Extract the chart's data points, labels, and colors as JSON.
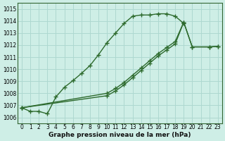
{
  "background_color": "#ceeee6",
  "grid_color": "#aed8d0",
  "line_color": "#2d6a2d",
  "xlabel": "Graphe pression niveau de la mer (hPa)",
  "ylim": [
    1005.5,
    1015.5
  ],
  "xlim": [
    -0.5,
    23.5
  ],
  "yticks": [
    1006,
    1007,
    1008,
    1009,
    1010,
    1011,
    1012,
    1013,
    1014,
    1015
  ],
  "xticks": [
    0,
    1,
    2,
    3,
    4,
    5,
    6,
    7,
    8,
    9,
    10,
    11,
    12,
    13,
    14,
    15,
    16,
    17,
    18,
    19,
    20,
    21,
    22,
    23
  ],
  "series": [
    {
      "x": [
        0,
        1,
        2,
        3,
        4,
        5,
        6,
        7,
        8,
        9,
        10,
        11,
        12,
        13,
        14,
        15,
        16,
        17,
        18,
        19
      ],
      "y": [
        1006.8,
        1006.5,
        1006.5,
        1006.3,
        1007.7,
        1008.5,
        1009.05,
        1009.65,
        1010.3,
        1011.2,
        1012.2,
        1013.0,
        1013.8,
        1014.4,
        1014.5,
        1014.5,
        1014.6,
        1014.6,
        1014.4,
        1013.8
      ]
    },
    {
      "x": [
        0,
        10,
        11,
        12,
        13,
        14,
        15,
        16,
        17,
        18,
        19,
        20,
        22,
        23
      ],
      "y": [
        1006.8,
        1008.0,
        1008.4,
        1008.9,
        1009.5,
        1010.1,
        1010.7,
        1011.3,
        1011.8,
        1012.3,
        1013.9,
        1011.85,
        1011.85,
        1011.9
      ]
    },
    {
      "x": [
        0,
        10,
        11,
        12,
        13,
        14,
        15,
        16,
        17,
        18,
        19,
        20,
        22,
        23
      ],
      "y": [
        1006.8,
        1007.8,
        1008.2,
        1008.7,
        1009.3,
        1009.9,
        1010.5,
        1011.1,
        1011.6,
        1012.1,
        1013.9,
        1011.85,
        1011.85,
        1011.9
      ]
    }
  ]
}
